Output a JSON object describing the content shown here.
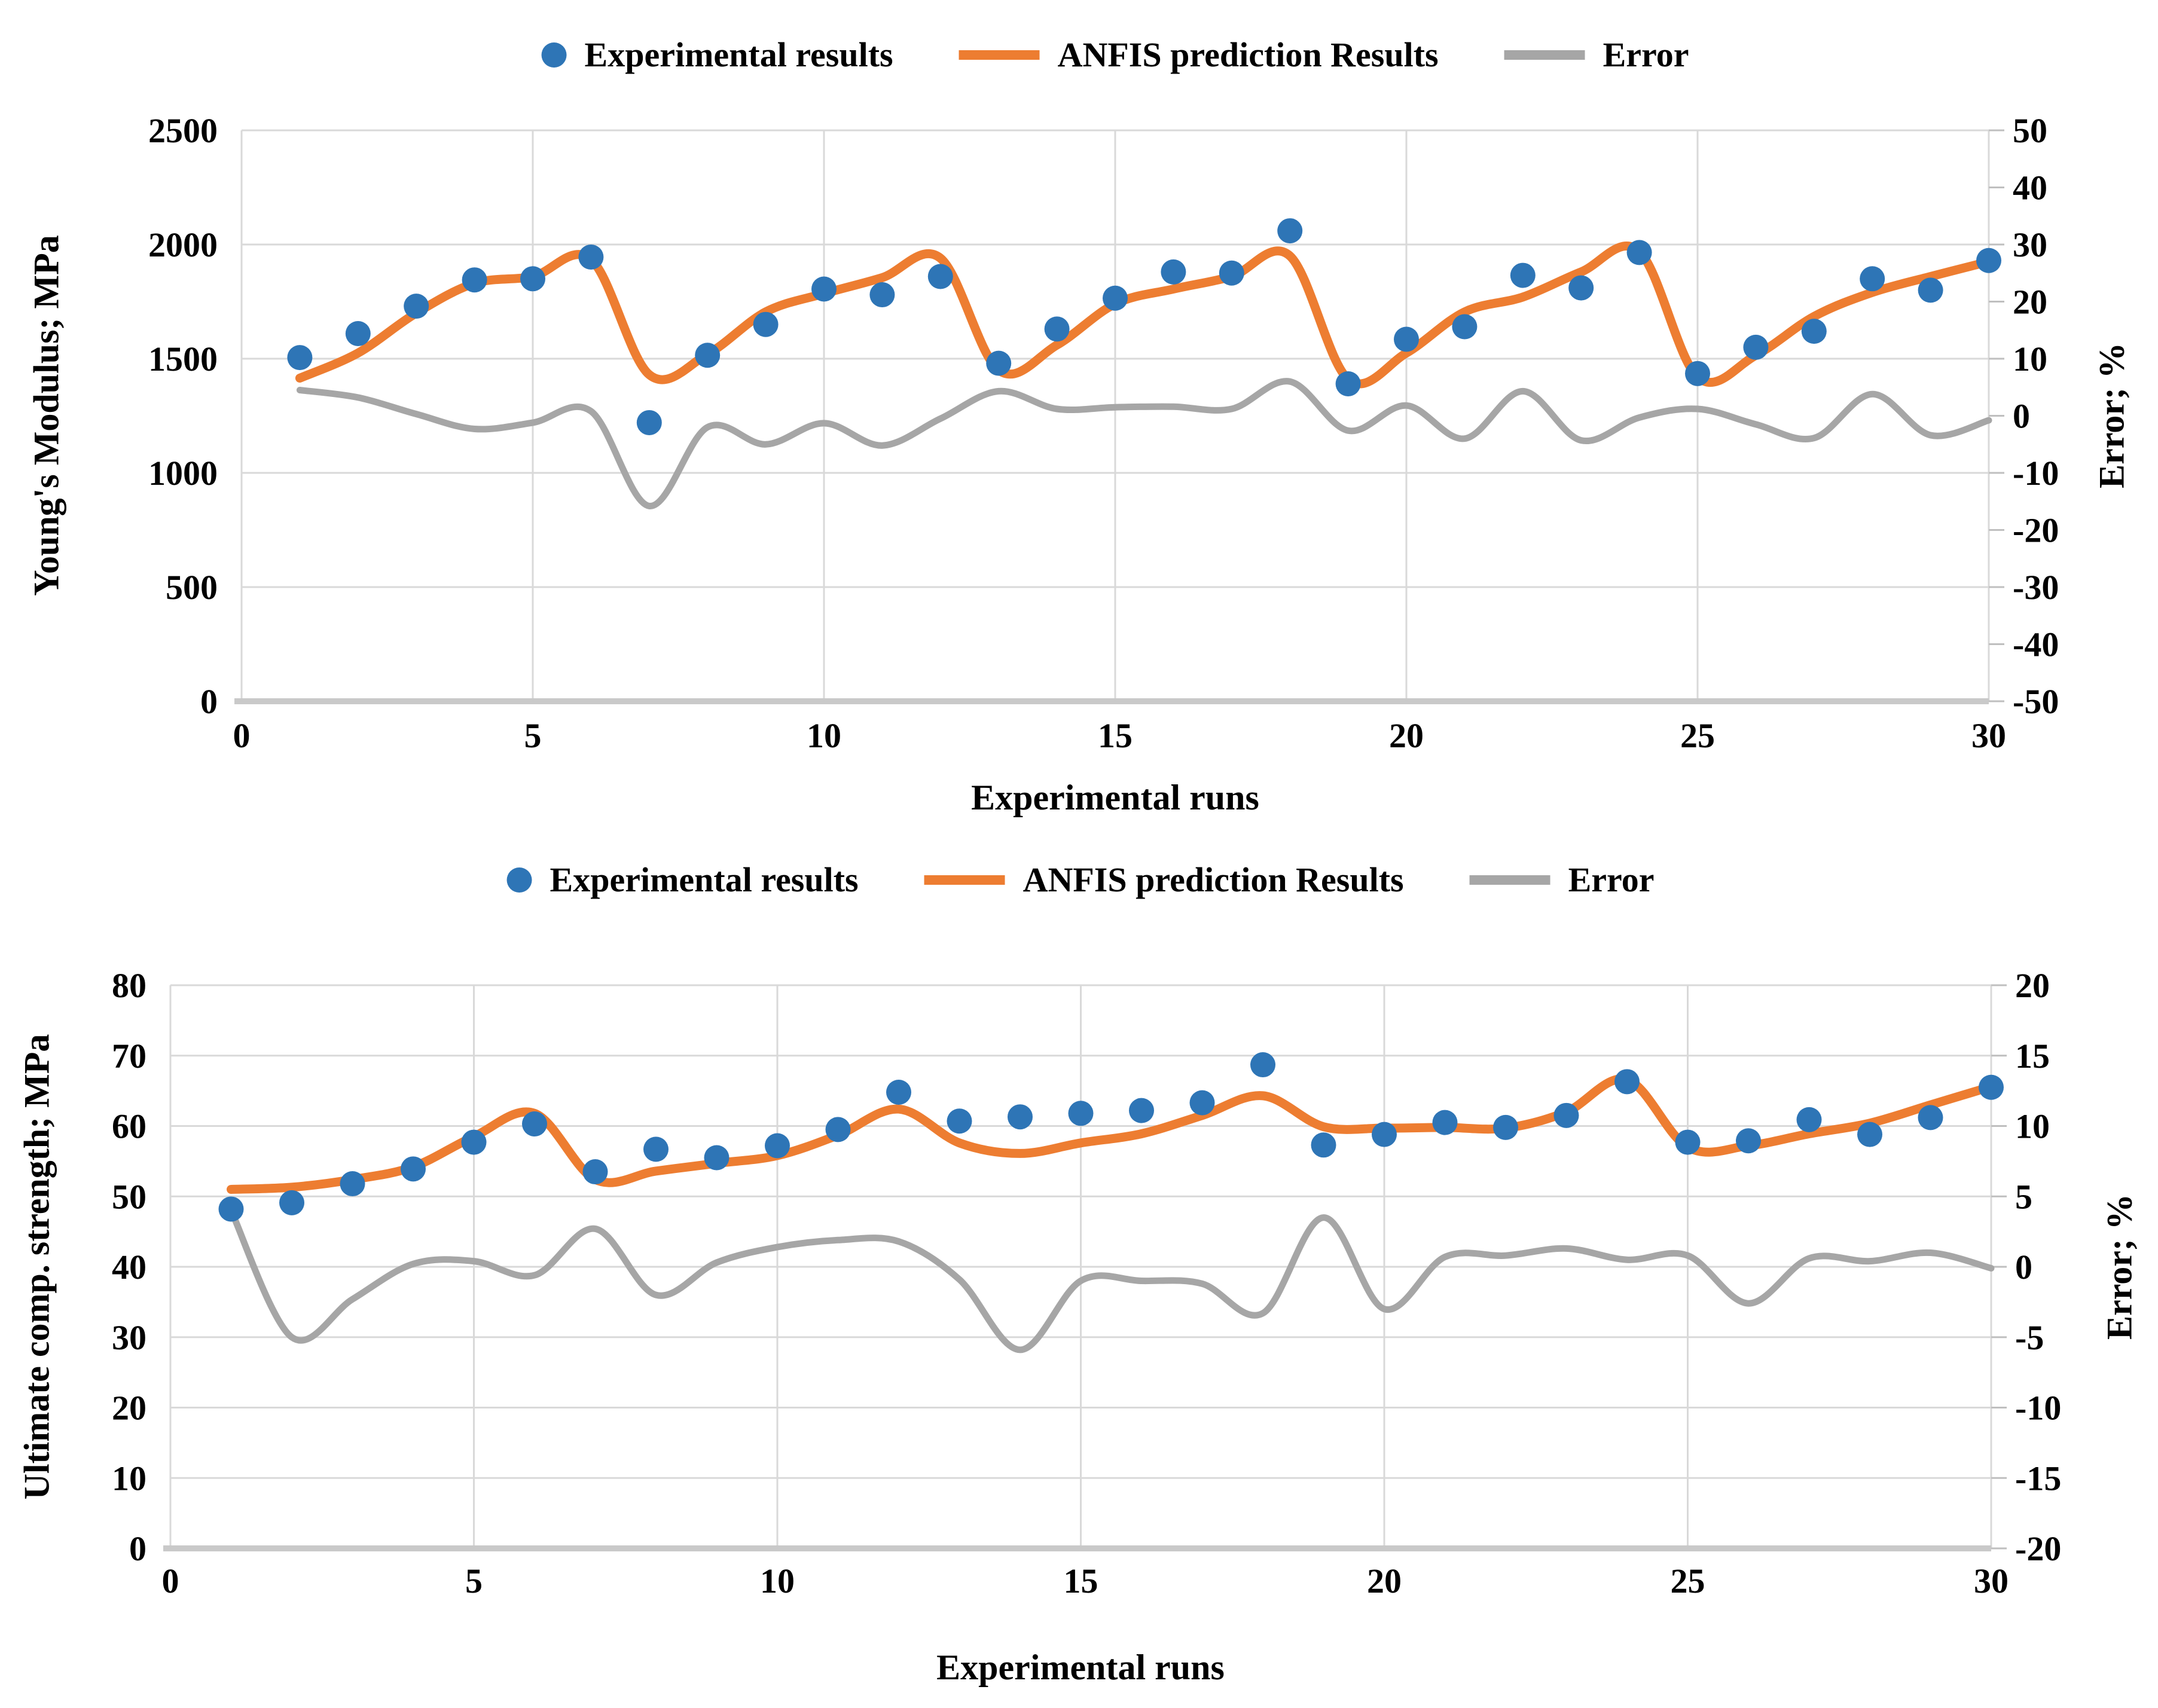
{
  "colors": {
    "experimental": "#2E75B6",
    "prediction": "#ED7D31",
    "error": "#A6A6A6",
    "gridline": "#D9D9D9",
    "axis_line": "#C9C9C9",
    "tick_mark": "#BFBFBF",
    "text": "#000000"
  },
  "chart_data": [
    {
      "type": "line",
      "panel": "top",
      "legend_position": "top",
      "grid": true,
      "xlabel": "Experimental runs",
      "xlim": [
        0,
        30
      ],
      "x_ticks": [
        0,
        5,
        10,
        15,
        20,
        25,
        30
      ],
      "ylabel_left": "Young's Modulus; MPa",
      "ylim_left": [
        0,
        2500
      ],
      "yticks_left": [
        0,
        500,
        1000,
        1500,
        2000,
        2500
      ],
      "ylabel_right": "Error; %",
      "ylim_right": [
        -50,
        50
      ],
      "yticks_right": [
        50,
        40,
        30,
        20,
        10,
        0,
        -10,
        -20,
        -30,
        -40,
        -50
      ],
      "x": [
        1,
        2,
        3,
        4,
        5,
        6,
        7,
        8,
        9,
        10,
        11,
        12,
        13,
        14,
        15,
        16,
        17,
        18,
        19,
        20,
        21,
        22,
        23,
        24,
        25,
        26,
        27,
        28,
        29,
        30
      ],
      "series": [
        {
          "name": "Experimental results",
          "style": "scatter",
          "axis": "left",
          "values": [
            1505,
            1610,
            1730,
            1845,
            1850,
            1945,
            1220,
            1515,
            1650,
            1805,
            1780,
            1860,
            1480,
            1630,
            1765,
            1880,
            1875,
            2060,
            1390,
            1585,
            1640,
            1865,
            1810,
            1965,
            1435,
            1550,
            1620,
            1850,
            1800,
            1930
          ]
        },
        {
          "name": "ANFIS prediction Results",
          "style": "line",
          "axis": "left",
          "values": [
            1415,
            1525,
            1700,
            1830,
            1860,
            1935,
            1430,
            1520,
            1705,
            1785,
            1855,
            1940,
            1450,
            1560,
            1740,
            1805,
            1860,
            1950,
            1410,
            1525,
            1705,
            1770,
            1880,
            1970,
            1420,
            1515,
            1685,
            1790,
            1860,
            1925
          ]
        },
        {
          "name": "Error",
          "style": "line",
          "axis": "right",
          "values": [
            4.5,
            3.2,
            0.3,
            -2.3,
            -1.2,
            0.8,
            -15.8,
            -2.0,
            -5.0,
            -1.3,
            -5.2,
            -0.5,
            4.3,
            1.2,
            1.5,
            1.6,
            1.2,
            6.0,
            -2.6,
            1.8,
            -4.0,
            4.3,
            -4.3,
            -0.3,
            1.2,
            -1.5,
            -3.9,
            3.8,
            -3.4,
            -0.8
          ]
        }
      ]
    },
    {
      "type": "line",
      "panel": "bottom",
      "legend_position": "top",
      "grid": true,
      "xlabel": "Experimental runs",
      "xlim": [
        0,
        30
      ],
      "x_ticks": [
        0,
        5,
        10,
        15,
        20,
        25,
        30
      ],
      "ylabel_left": "Ultimate comp. strength; MPa",
      "ylim_left": [
        0,
        80
      ],
      "yticks_left": [
        0,
        10,
        20,
        30,
        40,
        50,
        60,
        70,
        80
      ],
      "ylabel_right": "Error; %",
      "ylim_right": [
        -20,
        20
      ],
      "yticks_right": [
        20,
        15,
        10,
        5,
        0,
        -5,
        -10,
        -15,
        -20
      ],
      "x": [
        1,
        2,
        3,
        4,
        5,
        6,
        7,
        8,
        9,
        10,
        11,
        12,
        13,
        14,
        15,
        16,
        17,
        18,
        19,
        20,
        21,
        22,
        23,
        24,
        25,
        26,
        27,
        28,
        29,
        30
      ],
      "series": [
        {
          "name": "Experimental results",
          "style": "scatter",
          "axis": "left",
          "values": [
            48.2,
            49.1,
            51.8,
            53.9,
            57.7,
            60.3,
            53.5,
            56.7,
            55.5,
            57.2,
            59.5,
            64.8,
            60.7,
            61.3,
            61.8,
            62.2,
            63.3,
            68.7,
            57.3,
            58.8,
            60.5,
            59.8,
            61.5,
            66.3,
            57.7,
            57.9,
            60.9,
            58.8,
            61.2,
            65.5
          ]
        },
        {
          "name": "ANFIS prediction Results",
          "style": "line",
          "axis": "left",
          "values": [
            51.0,
            51.3,
            52.4,
            54.2,
            58.5,
            61.8,
            52.4,
            53.6,
            54.7,
            55.8,
            58.7,
            62.4,
            57.6,
            56.1,
            57.6,
            58.9,
            61.5,
            64.3,
            59.9,
            59.7,
            59.8,
            59.7,
            62.0,
            66.6,
            57.0,
            57.2,
            58.9,
            60.4,
            63.0,
            65.6
          ]
        },
        {
          "name": "Error",
          "style": "line",
          "axis": "right",
          "values": [
            4.0,
            -5.0,
            -2.3,
            0.2,
            0.4,
            -0.6,
            2.7,
            -2.0,
            0.3,
            1.4,
            1.9,
            1.8,
            -0.9,
            -5.9,
            -1.0,
            -1.0,
            -1.2,
            -3.3,
            3.5,
            -3.0,
            0.7,
            0.8,
            1.3,
            0.5,
            0.8,
            -2.6,
            0.6,
            0.4,
            1.0,
            -0.1
          ]
        }
      ]
    }
  ]
}
